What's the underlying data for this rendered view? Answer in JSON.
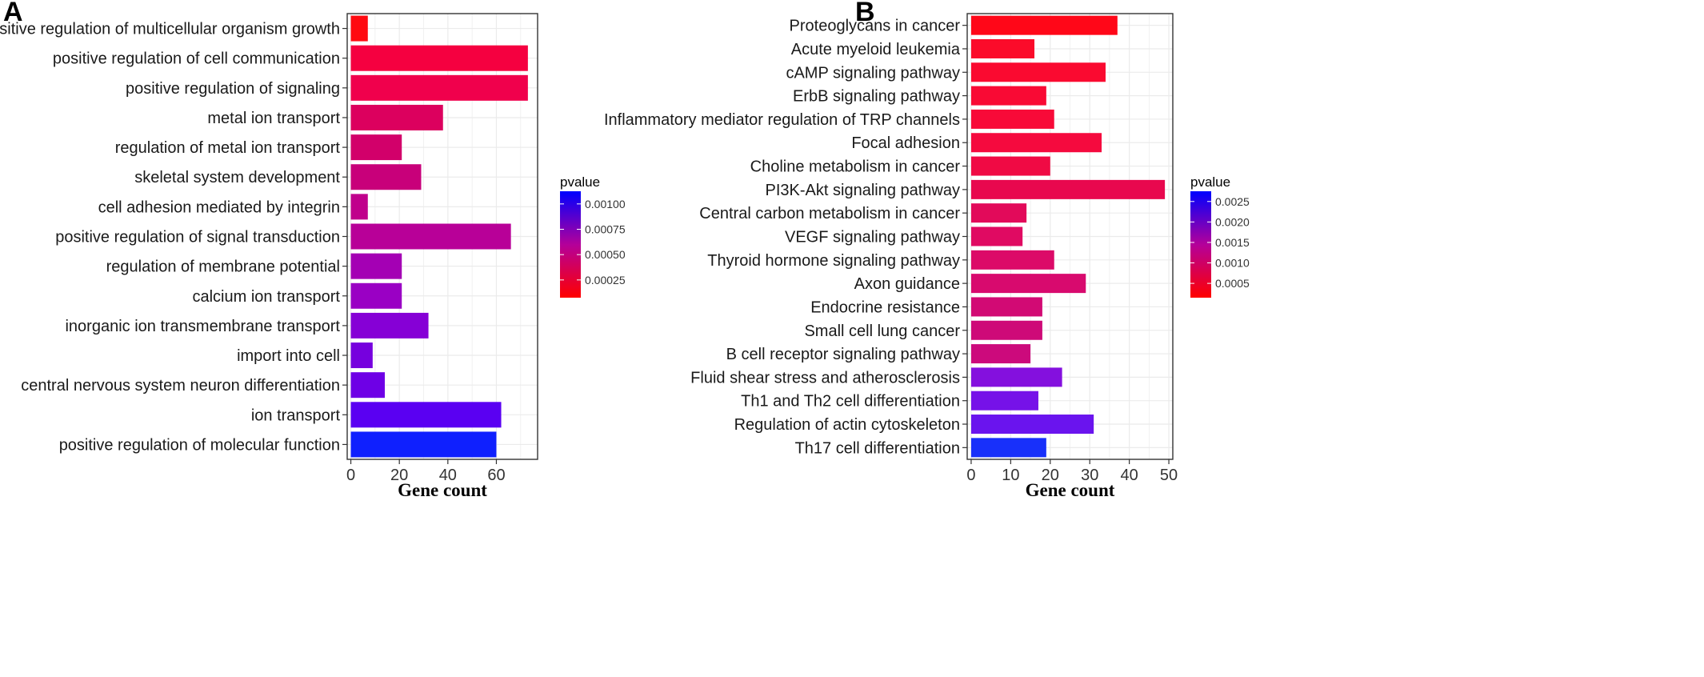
{
  "chart_data": [
    {
      "panel": "A",
      "type": "bar",
      "orientation": "horizontal",
      "categories": [
        "positive regulation of multicellular organism growth",
        "positive regulation of cell communication",
        "positive regulation of signaling",
        "metal ion transport",
        "regulation of metal ion transport",
        "skeletal system development",
        "cell adhesion mediated by integrin",
        "positive regulation of signal transduction",
        "regulation of membrane potential",
        "calcium ion transport",
        "inorganic ion transmembrane transport",
        "import into cell",
        "central nervous system neuron differentiation",
        "ion transport",
        "positive regulation of molecular function"
      ],
      "values": [
        7,
        73,
        73,
        38,
        21,
        29,
        7,
        66,
        21,
        21,
        32,
        9,
        14,
        62,
        60
      ],
      "colors": [
        "#ff0a10",
        "#f50040",
        "#f0004c",
        "#dc005e",
        "#d2006a",
        "#c8007a",
        "#c0008c",
        "#b80098",
        "#a400b4",
        "#9a00c4",
        "#8600d6",
        "#7600de",
        "#6e00e6",
        "#5a00f2",
        "#0f20fe"
      ],
      "xlabel": "Gene count",
      "ylabel": "",
      "xlim": [
        -1.5,
        77
      ],
      "xticks": [
        0,
        20,
        40,
        60
      ],
      "legend": {
        "title": "pvalue",
        "ticks": [
          "0.00100",
          "0.00075",
          "0.00050",
          "0.00025"
        ],
        "placement": "right",
        "gradient": [
          "#0000ff",
          "#ff0000"
        ]
      }
    },
    {
      "panel": "B",
      "type": "bar",
      "orientation": "horizontal",
      "categories": [
        "Proteoglycans in cancer",
        "Acute myeloid leukemia",
        "cAMP signaling pathway",
        "ErbB signaling pathway",
        "Inflammatory mediator regulation of TRP channels",
        "Focal adhesion",
        "Choline metabolism in cancer",
        "PI3K-Akt signaling pathway",
        "Central carbon metabolism in cancer",
        "VEGF signaling pathway",
        "Thyroid hormone signaling pathway",
        "Axon guidance",
        "Endocrine resistance",
        "Small cell lung cancer",
        "B cell receptor signaling pathway",
        "Fluid shear stress and atherosclerosis",
        "Th1 and Th2 cell differentiation",
        "Regulation of actin cytoskeleton",
        "Th17 cell differentiation"
      ],
      "values": [
        37,
        16,
        34,
        19,
        21,
        33,
        20,
        49,
        14,
        13,
        21,
        29,
        18,
        18,
        15,
        23,
        17,
        31,
        19
      ],
      "colors": [
        "#ff0718",
        "#fb0b2a",
        "#fa0a30",
        "#f90a34",
        "#f80a38",
        "#f50a3e",
        "#f00a44",
        "#e8084e",
        "#e20a5a",
        "#e00a62",
        "#dc0a68",
        "#d80a6e",
        "#d20a74",
        "#ce0a78",
        "#cc0a7c",
        "#8410de",
        "#7612e8",
        "#6a14ee",
        "#1830fa"
      ],
      "xlabel": "Gene count",
      "ylabel": "",
      "xlim": [
        -1,
        51
      ],
      "xticks": [
        0,
        10,
        20,
        30,
        40,
        50
      ],
      "legend": {
        "title": "pvalue",
        "ticks": [
          "0.0025",
          "0.0020",
          "0.0015",
          "0.0010",
          "0.0005"
        ],
        "placement": "right",
        "gradient": [
          "#0000ff",
          "#ff0000"
        ]
      }
    }
  ],
  "panel_labels": [
    "A",
    "B"
  ]
}
